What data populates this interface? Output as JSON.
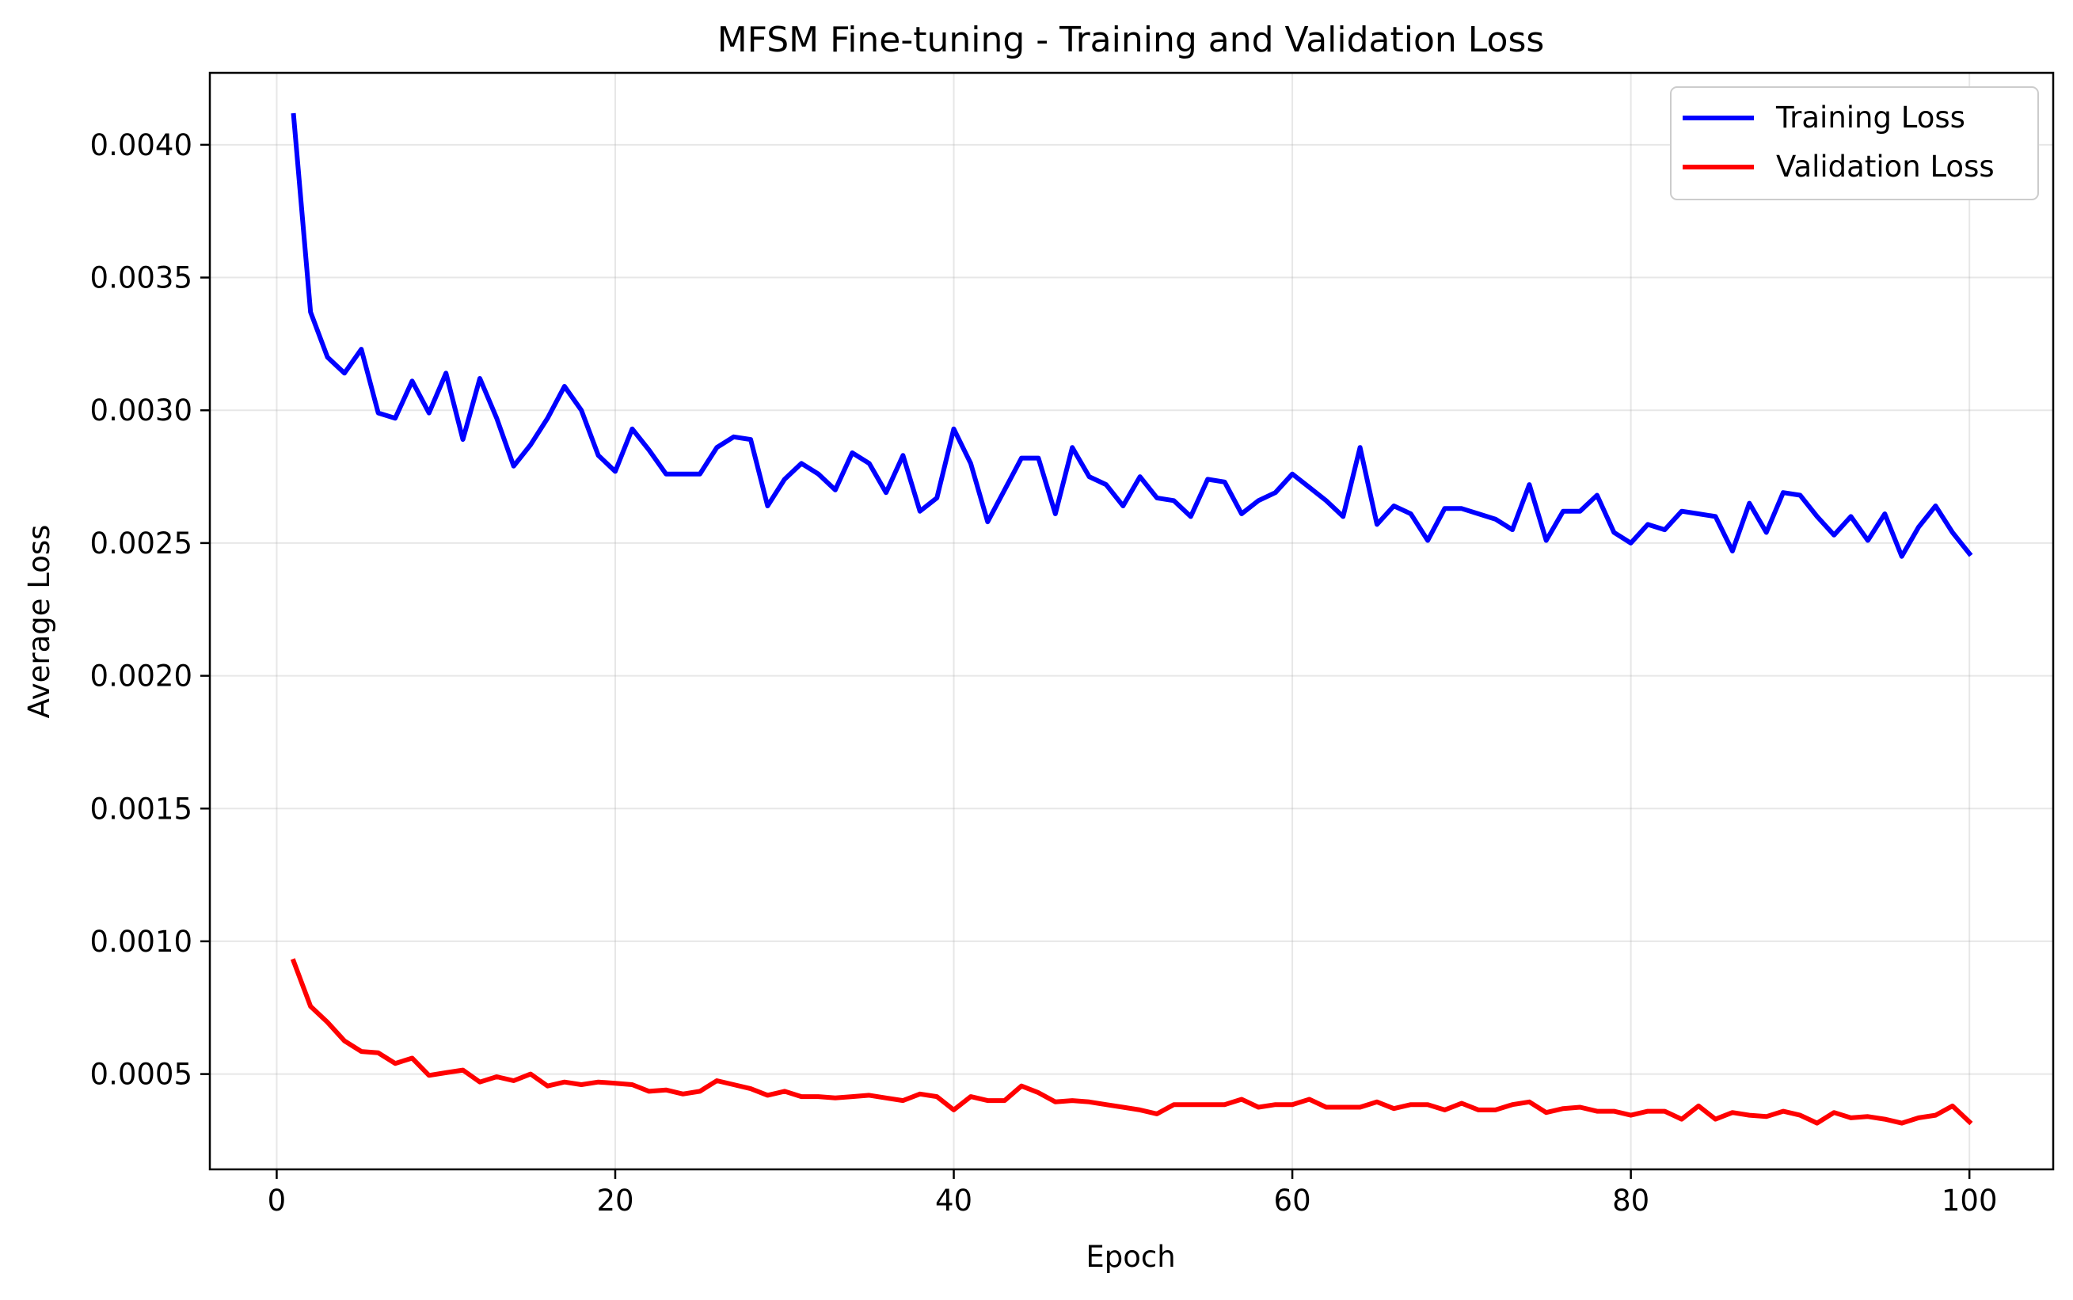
{
  "chart_data": {
    "type": "line",
    "title": "MFSM Fine-tuning - Training and Validation Loss",
    "xlabel": "Epoch",
    "ylabel": "Average Loss",
    "xlim": [
      -3.95,
      104.95
    ],
    "ylim": [
      0.000141,
      0.004271
    ],
    "x_ticks": [
      0,
      20,
      40,
      60,
      80,
      100
    ],
    "x_tick_labels": [
      "0",
      "20",
      "40",
      "60",
      "80",
      "100"
    ],
    "y_ticks": [
      0.0005,
      0.001,
      0.0015,
      0.002,
      0.0025,
      0.003,
      0.0035,
      0.004
    ],
    "y_tick_labels": [
      "0.0005",
      "0.0010",
      "0.0015",
      "0.0020",
      "0.0025",
      "0.0030",
      "0.0035",
      "0.0040"
    ],
    "grid": true,
    "legend_position": "top-right",
    "x": [
      1,
      2,
      3,
      4,
      5,
      6,
      7,
      8,
      9,
      10,
      11,
      12,
      13,
      14,
      15,
      16,
      17,
      18,
      19,
      20,
      21,
      22,
      23,
      24,
      25,
      26,
      27,
      28,
      29,
      30,
      31,
      32,
      33,
      34,
      35,
      36,
      37,
      38,
      39,
      40,
      41,
      42,
      43,
      44,
      45,
      46,
      47,
      48,
      49,
      50,
      51,
      52,
      53,
      54,
      55,
      56,
      57,
      58,
      59,
      60,
      61,
      62,
      63,
      64,
      65,
      66,
      67,
      68,
      69,
      70,
      71,
      72,
      73,
      74,
      75,
      76,
      77,
      78,
      79,
      80,
      81,
      82,
      83,
      84,
      85,
      86,
      87,
      88,
      89,
      90,
      91,
      92,
      93,
      94,
      95,
      96,
      97,
      98,
      99,
      100
    ],
    "series": [
      {
        "name": "Training Loss",
        "color": "#0000ff",
        "values": [
          0.00411,
          0.00337,
          0.0032,
          0.00314,
          0.00323,
          0.00299,
          0.00297,
          0.00311,
          0.00299,
          0.00314,
          0.00289,
          0.00312,
          0.00297,
          0.00279,
          0.00287,
          0.00297,
          0.00309,
          0.003,
          0.00283,
          0.00277,
          0.00293,
          0.00285,
          0.00276,
          0.00276,
          0.00276,
          0.00286,
          0.0029,
          0.00289,
          0.00264,
          0.00274,
          0.0028,
          0.00276,
          0.0027,
          0.00284,
          0.0028,
          0.00269,
          0.00283,
          0.00262,
          0.00267,
          0.00293,
          0.0028,
          0.00258,
          0.0027,
          0.00282,
          0.00282,
          0.00261,
          0.00286,
          0.00275,
          0.00272,
          0.00264,
          0.00275,
          0.00267,
          0.00266,
          0.0026,
          0.00274,
          0.00273,
          0.00261,
          0.00266,
          0.00269,
          0.00276,
          0.00271,
          0.00266,
          0.0026,
          0.00286,
          0.00257,
          0.00264,
          0.00261,
          0.00251,
          0.00263,
          0.00263,
          0.00261,
          0.00259,
          0.00255,
          0.00272,
          0.00251,
          0.00262,
          0.00262,
          0.00268,
          0.00254,
          0.0025,
          0.00257,
          0.00255,
          0.00262,
          0.00261,
          0.0026,
          0.00247,
          0.00265,
          0.00254,
          0.00269,
          0.00268,
          0.0026,
          0.00253,
          0.0026,
          0.00251,
          0.00261,
          0.00245,
          0.00256,
          0.00264,
          0.00254,
          0.00246
        ]
      },
      {
        "name": "Validation Loss",
        "color": "#ff0000",
        "values": [
          0.000925,
          0.000755,
          0.000695,
          0.000625,
          0.000585,
          0.00058,
          0.00054,
          0.00056,
          0.000495,
          0.000505,
          0.000515,
          0.00047,
          0.00049,
          0.000475,
          0.0005,
          0.000455,
          0.00047,
          0.00046,
          0.00047,
          0.000465,
          0.00046,
          0.000435,
          0.00044,
          0.000425,
          0.000435,
          0.000475,
          0.00046,
          0.000445,
          0.00042,
          0.000435,
          0.000415,
          0.000415,
          0.00041,
          0.000415,
          0.00042,
          0.00041,
          0.0004,
          0.000425,
          0.000415,
          0.000365,
          0.000415,
          0.0004,
          0.0004,
          0.000455,
          0.00043,
          0.000395,
          0.0004,
          0.000395,
          0.000385,
          0.000375,
          0.000365,
          0.00035,
          0.000385,
          0.000385,
          0.000385,
          0.000385,
          0.000405,
          0.000375,
          0.000385,
          0.000385,
          0.000405,
          0.000375,
          0.000375,
          0.000375,
          0.000395,
          0.00037,
          0.000385,
          0.000385,
          0.000365,
          0.00039,
          0.000365,
          0.000365,
          0.000385,
          0.000395,
          0.000355,
          0.00037,
          0.000375,
          0.00036,
          0.00036,
          0.000345,
          0.00036,
          0.00036,
          0.00033,
          0.00038,
          0.00033,
          0.000355,
          0.000345,
          0.00034,
          0.00036,
          0.000345,
          0.000315,
          0.000355,
          0.000335,
          0.00034,
          0.00033,
          0.000315,
          0.000335,
          0.000345,
          0.00038,
          0.00032
        ]
      }
    ]
  }
}
